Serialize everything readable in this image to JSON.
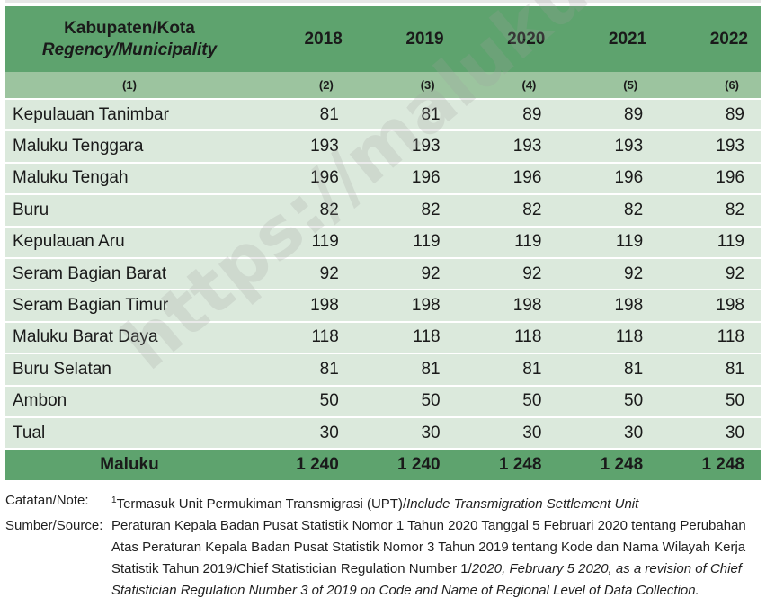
{
  "table": {
    "header": {
      "region_label": "Kabupaten/Kota",
      "region_label_en": "Regency/Municipality",
      "years": [
        "2018",
        "2019",
        "2020",
        "2021",
        "2022"
      ],
      "col_numbers": [
        "(1)",
        "(2)",
        "(3)",
        "(4)",
        "(5)",
        "(6)"
      ]
    },
    "rows": [
      {
        "region": "Kepulauan Tanimbar",
        "values": [
          "81",
          "81",
          "89",
          "89",
          "89"
        ]
      },
      {
        "region": "Maluku Tenggara",
        "values": [
          "193",
          "193",
          "193",
          "193",
          "193"
        ]
      },
      {
        "region": "Maluku Tengah",
        "values": [
          "196",
          "196",
          "196",
          "196",
          "196"
        ]
      },
      {
        "region": "Buru",
        "values": [
          "82",
          "82",
          "82",
          "82",
          "82"
        ]
      },
      {
        "region": "Kepulauan Aru",
        "values": [
          "119",
          "119",
          "119",
          "119",
          "119"
        ]
      },
      {
        "region": "Seram Bagian Barat",
        "values": [
          "92",
          "92",
          "92",
          "92",
          "92"
        ]
      },
      {
        "region": "Seram Bagian Timur",
        "values": [
          "198",
          "198",
          "198",
          "198",
          "198"
        ]
      },
      {
        "region": "Maluku Barat Daya",
        "values": [
          "118",
          "118",
          "118",
          "118",
          "118"
        ]
      },
      {
        "region": "Buru Selatan",
        "values": [
          "81",
          "81",
          "81",
          "81",
          "81"
        ]
      },
      {
        "region": "Ambon",
        "values": [
          "50",
          "50",
          "50",
          "50",
          "50"
        ]
      },
      {
        "region": "Tual",
        "values": [
          "30",
          "30",
          "30",
          "30",
          "30"
        ]
      }
    ],
    "total": {
      "region": "Maluku",
      "values": [
        "1 240",
        "1 240",
        "1 248",
        "1 248",
        "1 248"
      ]
    }
  },
  "notes": {
    "note_label": "Catatan/Note:",
    "note_sup": "1",
    "note_text_id": "Termasuk Unit Permukiman Transmigrasi (UPT)/",
    "note_text_en": "Include Transmigration Settlement Unit",
    "source_label": "Sumber/Source:",
    "source_text_id": "Peraturan Kepala Badan Pusat Statistik Nomor 1 Tahun 2020 Tanggal 5 Februari 2020 tentang Perubahan Atas Peraturan Kepala Badan Pusat Statistik Nomor 3 Tahun 2019 tentang Kode dan Nama Wilayah Kerja Statistik Tahun 2019/Chief Statistician Regulation Number 1/",
    "source_text_en": "2020, February 5 2020, as a revision of Chief Statistician Regulation Number 3 of 2019 on Code and Name of Regional Level of Data Collection."
  },
  "watermark": "https://malukubps.go.id",
  "colors": {
    "header": "#5ea36e",
    "subheader": "#9cc49f",
    "row": "#dbe9dc"
  }
}
